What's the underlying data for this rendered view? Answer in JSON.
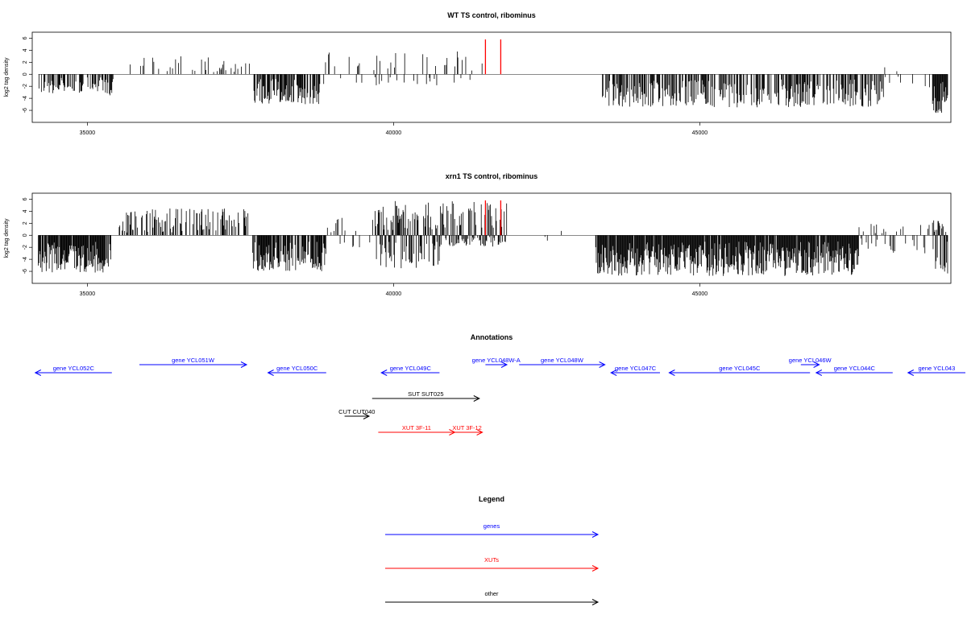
{
  "chart_data": [
    {
      "type": "bar",
      "title": "WT TS control, ribominus",
      "ylabel": "log2 tag density",
      "xlabel": "",
      "xlim": [
        34100,
        49100
      ],
      "ylim": [
        -8,
        7
      ],
      "x_ticks": [
        35000,
        40000,
        45000
      ],
      "y_ticks": [
        6,
        4,
        2,
        0,
        -2,
        -4,
        -6
      ],
      "segments": [
        {
          "from": 34200,
          "to": 35350,
          "density": 0.55,
          "lo": -3.2,
          "hi": 0
        },
        {
          "from": 35350,
          "to": 35420,
          "density": 0.8,
          "lo": -4,
          "hi": 0
        },
        {
          "from": 35700,
          "to": 37700,
          "density": 0.18,
          "lo": 0,
          "hi": 3
        },
        {
          "from": 37700,
          "to": 38800,
          "density": 0.75,
          "lo": -5,
          "hi": 0
        },
        {
          "from": 38800,
          "to": 40300,
          "density": 0.15,
          "lo": -2.5,
          "hi": 3.8
        },
        {
          "from": 40300,
          "to": 41500,
          "density": 0.2,
          "lo": -2,
          "hi": 4
        },
        {
          "from": 43400,
          "to": 48000,
          "density": 0.6,
          "lo": -5.5,
          "hi": 0
        },
        {
          "from": 48000,
          "to": 48800,
          "density": 0.15,
          "lo": -2.5,
          "hi": 1.5
        },
        {
          "from": 48800,
          "to": 49050,
          "density": 1.0,
          "lo": -7,
          "hi": 0
        }
      ],
      "highlight_color": "#ff0000",
      "highlights": [
        {
          "x": 41500,
          "value": 5.8
        },
        {
          "x": 41750,
          "value": 5.8
        }
      ]
    },
    {
      "type": "bar",
      "title": "xrn1 TS control, ribominus",
      "ylabel": "log2 tag density",
      "xlabel": "",
      "xlim": [
        34100,
        49100
      ],
      "ylim": [
        -8,
        7
      ],
      "x_ticks": [
        35000,
        40000,
        45000
      ],
      "y_ticks": [
        6,
        4,
        2,
        0,
        -2,
        -4,
        -6
      ],
      "segments": [
        {
          "from": 34200,
          "to": 35400,
          "density": 0.9,
          "lo": -6.2,
          "hi": 0
        },
        {
          "from": 35500,
          "to": 37700,
          "density": 0.45,
          "lo": 0,
          "hi": 4.5
        },
        {
          "from": 37700,
          "to": 38900,
          "density": 0.85,
          "lo": -6,
          "hi": 0
        },
        {
          "from": 38900,
          "to": 39700,
          "density": 0.2,
          "lo": -2,
          "hi": 3
        },
        {
          "from": 39700,
          "to": 40800,
          "density": 0.9,
          "lo": -5.5,
          "hi": 5.8
        },
        {
          "from": 40800,
          "to": 41850,
          "density": 0.85,
          "lo": -2,
          "hi": 5.8
        },
        {
          "from": 41850,
          "to": 43300,
          "density": 0.05,
          "lo": -1,
          "hi": 2.5
        },
        {
          "from": 43300,
          "to": 47600,
          "density": 0.95,
          "lo": -6.8,
          "hi": 0
        },
        {
          "from": 47600,
          "to": 48800,
          "density": 0.3,
          "lo": -3,
          "hi": 2
        },
        {
          "from": 48800,
          "to": 49050,
          "density": 1.0,
          "lo": -6.8,
          "hi": 2.5
        }
      ],
      "highlight_color": "#ff0000",
      "highlights": [
        {
          "x": 41500,
          "value": 5.8
        },
        {
          "x": 41750,
          "value": 5.8
        }
      ]
    }
  ],
  "annotations": {
    "title": "Annotations",
    "colors": {
      "genes": "#0000ff",
      "XUTs": "#ff0000",
      "other": "#000000"
    },
    "tracks": [
      {
        "label": "gene YCL052C",
        "type": "genes",
        "strand": "-",
        "from": 34150,
        "to": 35400,
        "row": 1
      },
      {
        "label": "gene YCL051W",
        "type": "genes",
        "strand": "+",
        "from": 35850,
        "to": 37600,
        "row": 0
      },
      {
        "label": "gene YCL050C",
        "type": "genes",
        "strand": "-",
        "from": 37950,
        "to": 38900,
        "row": 1
      },
      {
        "label": "gene YCL049C",
        "type": "genes",
        "strand": "-",
        "from": 39800,
        "to": 40750,
        "row": 1
      },
      {
        "label": "gene YCL048W-A",
        "type": "genes",
        "strand": "+",
        "from": 41500,
        "to": 41850,
        "row": 0
      },
      {
        "label": "gene YCL048W",
        "type": "genes",
        "strand": "+",
        "from": 42050,
        "to": 43450,
        "row": 0
      },
      {
        "label": "gene YCL047C",
        "type": "genes",
        "strand": "-",
        "from": 43550,
        "to": 44350,
        "row": 1
      },
      {
        "label": "gene YCL045C",
        "type": "genes",
        "strand": "-",
        "from": 44500,
        "to": 46800,
        "row": 1
      },
      {
        "label": "gene YCL046W",
        "type": "genes",
        "strand": "+",
        "from": 46650,
        "to": 46950,
        "row": 0
      },
      {
        "label": "gene YCL044C",
        "type": "genes",
        "strand": "-",
        "from": 46900,
        "to": 48150,
        "row": 1
      },
      {
        "label": "gene YCL043",
        "type": "genes",
        "strand": "-",
        "from": 48400,
        "to": 49500,
        "row": 1
      },
      {
        "label": "SUT SUT025",
        "type": "other",
        "strand": "+",
        "from": 39650,
        "to": 41400,
        "row": 2
      },
      {
        "label": "CUT CUT040",
        "type": "other",
        "strand": "+",
        "from": 39200,
        "to": 39600,
        "row": 3
      },
      {
        "label": "XUT 3F-11",
        "type": "XUTs",
        "strand": "+",
        "from": 39750,
        "to": 41000,
        "row": 4
      },
      {
        "label": "XUT 3F-12",
        "type": "XUTs",
        "strand": "+",
        "from": 40950,
        "to": 41450,
        "row": 4
      }
    ]
  },
  "legend": {
    "title": "Legend",
    "items": [
      {
        "label": "genes",
        "color": "#0000ff"
      },
      {
        "label": "XUTs",
        "color": "#ff0000"
      },
      {
        "label": "other",
        "color": "#000000"
      }
    ]
  }
}
